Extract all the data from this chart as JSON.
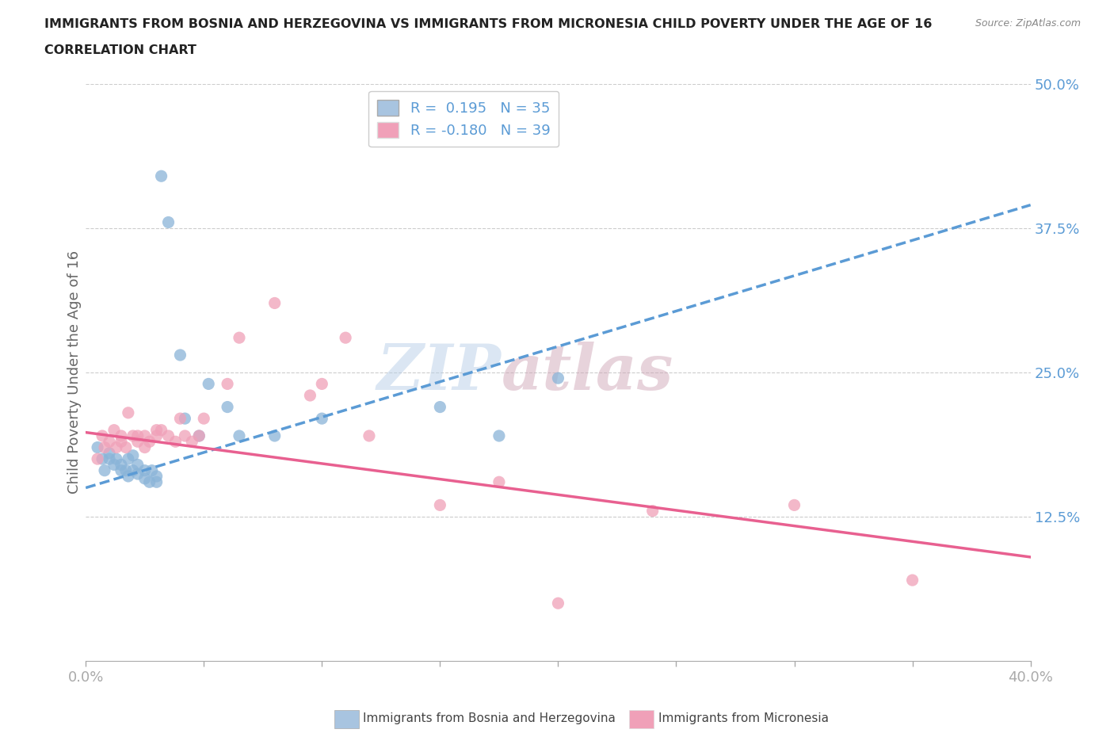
{
  "title_line1": "IMMIGRANTS FROM BOSNIA AND HERZEGOVINA VS IMMIGRANTS FROM MICRONESIA CHILD POVERTY UNDER THE AGE OF 16",
  "title_line2": "CORRELATION CHART",
  "source_text": "Source: ZipAtlas.com",
  "ylabel": "Child Poverty Under the Age of 16",
  "xlim": [
    0.0,
    0.4
  ],
  "ylim": [
    0.0,
    0.5
  ],
  "xticks": [
    0.0,
    0.05,
    0.1,
    0.15,
    0.2,
    0.25,
    0.3,
    0.35,
    0.4
  ],
  "yticks": [
    0.0,
    0.125,
    0.25,
    0.375,
    0.5
  ],
  "ytick_labels": [
    "",
    "12.5%",
    "25.0%",
    "37.5%",
    "50.0%"
  ],
  "xtick_labels": [
    "0.0%",
    "",
    "",
    "",
    "",
    "",
    "",
    "",
    "40.0%"
  ],
  "watermark_zip": "ZIP",
  "watermark_atlas": "atlas",
  "blue_color": "#a8c4e0",
  "blue_scatter_color": "#8ab4d8",
  "pink_color": "#f0a0b8",
  "pink_scatter_color": "#f0a0b8",
  "blue_R": "0.195",
  "blue_N": "35",
  "pink_R": "-0.180",
  "pink_N": "39",
  "blue_scatter_x": [
    0.005,
    0.007,
    0.008,
    0.01,
    0.01,
    0.012,
    0.013,
    0.015,
    0.015,
    0.017,
    0.018,
    0.018,
    0.02,
    0.02,
    0.022,
    0.022,
    0.025,
    0.025,
    0.027,
    0.028,
    0.03,
    0.03,
    0.032,
    0.035,
    0.04,
    0.042,
    0.048,
    0.052,
    0.06,
    0.065,
    0.08,
    0.1,
    0.15,
    0.175,
    0.2
  ],
  "blue_scatter_y": [
    0.185,
    0.175,
    0.165,
    0.175,
    0.18,
    0.17,
    0.175,
    0.165,
    0.17,
    0.165,
    0.16,
    0.175,
    0.165,
    0.178,
    0.17,
    0.162,
    0.158,
    0.165,
    0.155,
    0.165,
    0.155,
    0.16,
    0.42,
    0.38,
    0.265,
    0.21,
    0.195,
    0.24,
    0.22,
    0.195,
    0.195,
    0.21,
    0.22,
    0.195,
    0.245
  ],
  "pink_scatter_x": [
    0.005,
    0.007,
    0.008,
    0.01,
    0.012,
    0.013,
    0.015,
    0.015,
    0.017,
    0.018,
    0.02,
    0.022,
    0.022,
    0.025,
    0.025,
    0.027,
    0.03,
    0.03,
    0.032,
    0.035,
    0.038,
    0.04,
    0.042,
    0.045,
    0.048,
    0.05,
    0.06,
    0.065,
    0.08,
    0.095,
    0.1,
    0.11,
    0.12,
    0.15,
    0.175,
    0.2,
    0.24,
    0.3,
    0.35
  ],
  "pink_scatter_y": [
    0.175,
    0.195,
    0.185,
    0.19,
    0.2,
    0.185,
    0.19,
    0.195,
    0.185,
    0.215,
    0.195,
    0.19,
    0.195,
    0.185,
    0.195,
    0.19,
    0.2,
    0.195,
    0.2,
    0.195,
    0.19,
    0.21,
    0.195,
    0.19,
    0.195,
    0.21,
    0.24,
    0.28,
    0.31,
    0.23,
    0.24,
    0.28,
    0.195,
    0.135,
    0.155,
    0.05,
    0.13,
    0.135,
    0.07
  ],
  "grid_color": "#cccccc",
  "background_color": "#ffffff",
  "hline_y_values": [
    0.125,
    0.25,
    0.375,
    0.5
  ],
  "blue_line_x": [
    0.0,
    0.4
  ],
  "blue_line_y_start": 0.15,
  "blue_line_y_end": 0.395,
  "pink_line_x": [
    0.0,
    0.4
  ],
  "pink_line_y_start": 0.198,
  "pink_line_y_end": 0.09,
  "legend_label_blue": "R =  0.195   N = 35",
  "legend_label_pink": "R = -0.180   N = 39",
  "bottom_label_blue": "Immigrants from Bosnia and Herzegovina",
  "bottom_label_pink": "Immigrants from Micronesia"
}
